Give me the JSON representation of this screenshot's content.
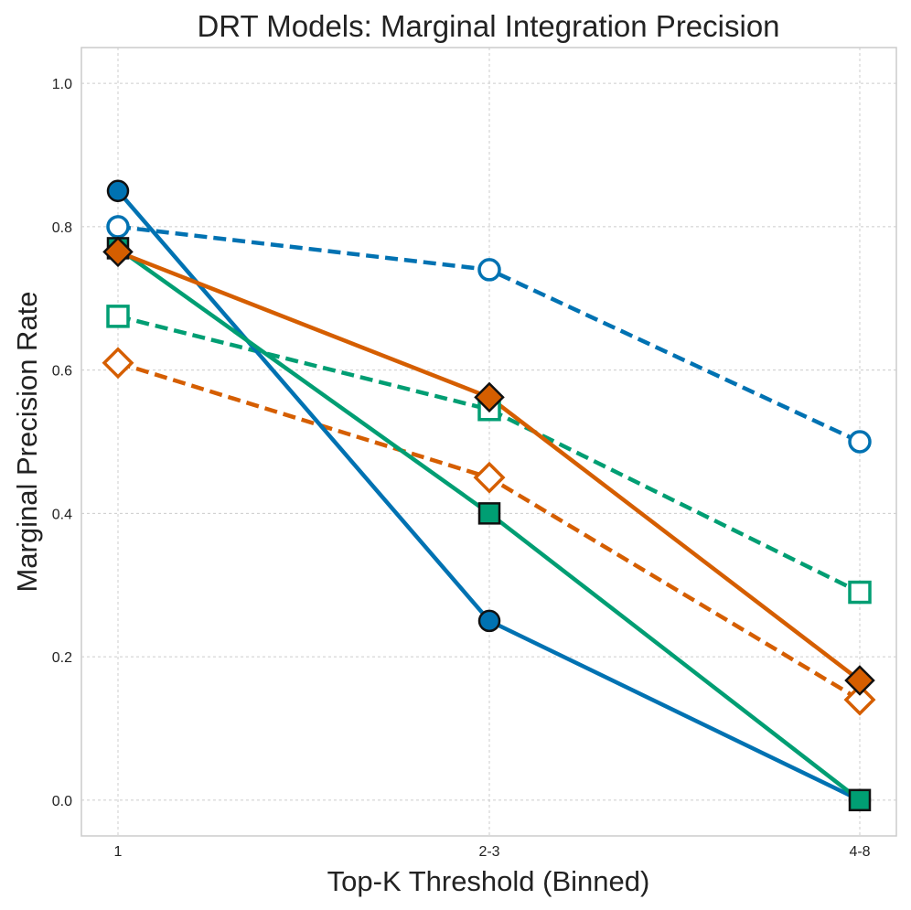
{
  "chart_data": {
    "type": "line",
    "title": "DRT Models: Marginal Integration Precision",
    "xlabel": "Top-K Threshold (Binned)",
    "ylabel": "Marginal Precision Rate",
    "categories": [
      "1",
      "2-3",
      "4-8"
    ],
    "ylim": [
      -0.05,
      1.05
    ],
    "yticks": [
      "0.0",
      "0.2",
      "0.4",
      "0.6",
      "0.8",
      "1.0"
    ],
    "grid": true,
    "legend": "none",
    "series": [
      {
        "name": "blue-dashed-open-circle",
        "color": "#0072B2",
        "dash": true,
        "marker": "circle",
        "filled": false,
        "values": [
          0.8,
          0.74,
          0.5
        ]
      },
      {
        "name": "green-dashed-open-square",
        "color": "#009E73",
        "dash": true,
        "marker": "square",
        "filled": false,
        "values": [
          0.675,
          0.545,
          0.29
        ]
      },
      {
        "name": "orange-dashed-open-diamond",
        "color": "#D55E00",
        "dash": true,
        "marker": "diamond",
        "filled": false,
        "values": [
          0.61,
          0.45,
          0.14
        ]
      },
      {
        "name": "blue-solid-filled-circle",
        "color": "#0072B2",
        "dash": false,
        "marker": "circle",
        "filled": true,
        "values": [
          0.85,
          0.25,
          0.0
        ]
      },
      {
        "name": "green-solid-filled-square",
        "color": "#009E73",
        "dash": false,
        "marker": "square",
        "filled": true,
        "values": [
          0.77,
          0.4,
          0.0
        ]
      },
      {
        "name": "orange-solid-filled-diamond",
        "color": "#D55E00",
        "dash": false,
        "marker": "diamond",
        "filled": true,
        "values": [
          0.765,
          0.562,
          0.167
        ]
      }
    ]
  }
}
